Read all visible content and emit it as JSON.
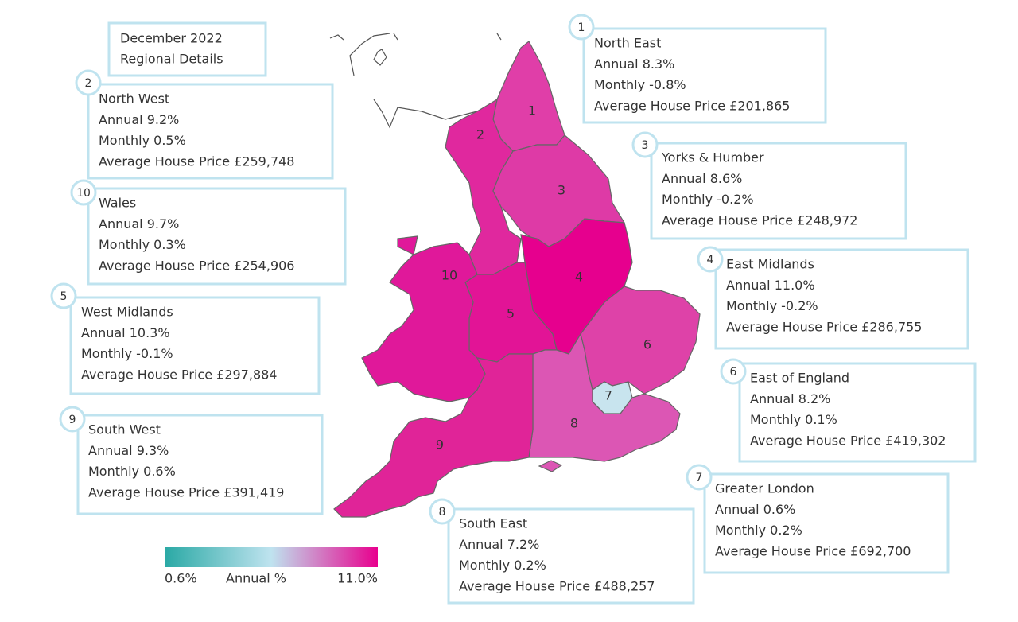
{
  "header": {
    "lines": [
      "December 2022",
      "Regional Details"
    ]
  },
  "regions": [
    {
      "number": "1",
      "name": "North East",
      "annual": "Annual 8.3%",
      "monthly": "Monthly -0.8%",
      "price": "Average House Price £201,865",
      "color": "#e03ea8"
    },
    {
      "number": "2",
      "name": "North West",
      "annual": "Annual 9.2%",
      "monthly": "Monthly 0.5%",
      "price": "Average House Price £259,748",
      "color": "#e0289e"
    },
    {
      "number": "3",
      "name": "Yorks & Humber",
      "annual": "Annual 8.6%",
      "monthly": "Monthly -0.2%",
      "price": "Average House Price £248,972",
      "color": "#de3aa6"
    },
    {
      "number": "4",
      "name": "East Midlands",
      "annual": "Annual 11.0%",
      "monthly": "Monthly -0.2%",
      "price": "Average House Price £286,755",
      "color": "#e6008e"
    },
    {
      "number": "5",
      "name": "West Midlands",
      "annual": "Annual 10.3%",
      "monthly": "Monthly -0.1%",
      "price": "Average House Price £297,884",
      "color": "#e21496"
    },
    {
      "number": "6",
      "name": "East of England",
      "annual": "Annual 8.2%",
      "monthly": "Monthly 0.1%",
      "price": "Average House Price £419,302",
      "color": "#de42a8"
    },
    {
      "number": "7",
      "name": "Greater London",
      "annual": "Annual 0.6%",
      "monthly": "Monthly 0.2%",
      "price": "Average House Price £692,700",
      "color": "#c8e4ee"
    },
    {
      "number": "8",
      "name": "South East",
      "annual": "Annual 7.2%",
      "monthly": "Monthly 0.2%",
      "price": "Average House Price £488,257",
      "color": "#dc56b4"
    },
    {
      "number": "9",
      "name": "South West",
      "annual": "Annual 9.3%",
      "monthly": "Monthly 0.6%",
      "price": "Average House Price £391,419",
      "color": "#e02498"
    },
    {
      "number": "10",
      "name": "Wales",
      "annual": "Annual 9.7%",
      "monthly": "Monthly 0.3%",
      "price": "Average House Price £254,906",
      "color": "#e0189a"
    }
  ],
  "legend": {
    "min": "0.6%",
    "label": "Annual %",
    "max": "11.0%",
    "colors": [
      "#2aa9a5",
      "#bfe3ef",
      "#e8008e"
    ]
  }
}
